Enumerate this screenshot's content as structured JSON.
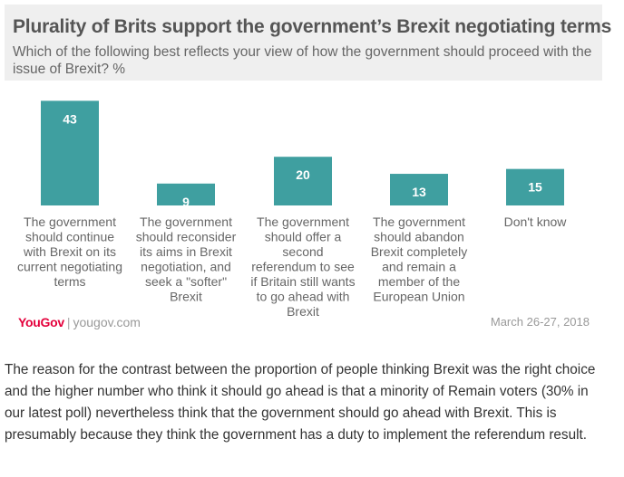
{
  "header": {
    "title": "Plurality of Brits support the government’s Brexit negotiating terms",
    "subtitle": "Which of the following best reflects your view of how the government should proceed with the issue of Brexit? %"
  },
  "chart_data": {
    "type": "bar",
    "categories": [
      [
        "The government",
        "should continue",
        "with Brexit on its",
        "current negotiating",
        "terms"
      ],
      [
        "The government",
        "should reconsider",
        "its aims in Brexit",
        "negotiation, and",
        "seek a \"softer\"",
        "Brexit"
      ],
      [
        "The government",
        "should offer a",
        "second",
        "referendum to see",
        "if Britain still wants",
        "to go ahead with",
        "Brexit"
      ],
      [
        "The government",
        "should abandon",
        "Brexit completely",
        "and remain a",
        "member of the",
        "European Union"
      ],
      [
        "Don't know"
      ]
    ],
    "values": [
      43,
      9,
      20,
      13,
      15
    ],
    "ylim": [
      0,
      45
    ],
    "grid": false,
    "bar_color": "#3f9fa0"
  },
  "footer": {
    "brand": "YouGov",
    "url": "yougov.com",
    "date": "March 26-27, 2018"
  },
  "body_text": "The reason for the contrast between the proportion of people thinking Brexit was the right choice and the higher number who think it should go ahead is that a minority of Remain voters (30% in our latest poll) nevertheless think that the government should go ahead with Brexit. This is presumably because they think the government has a duty to implement the referendum result."
}
